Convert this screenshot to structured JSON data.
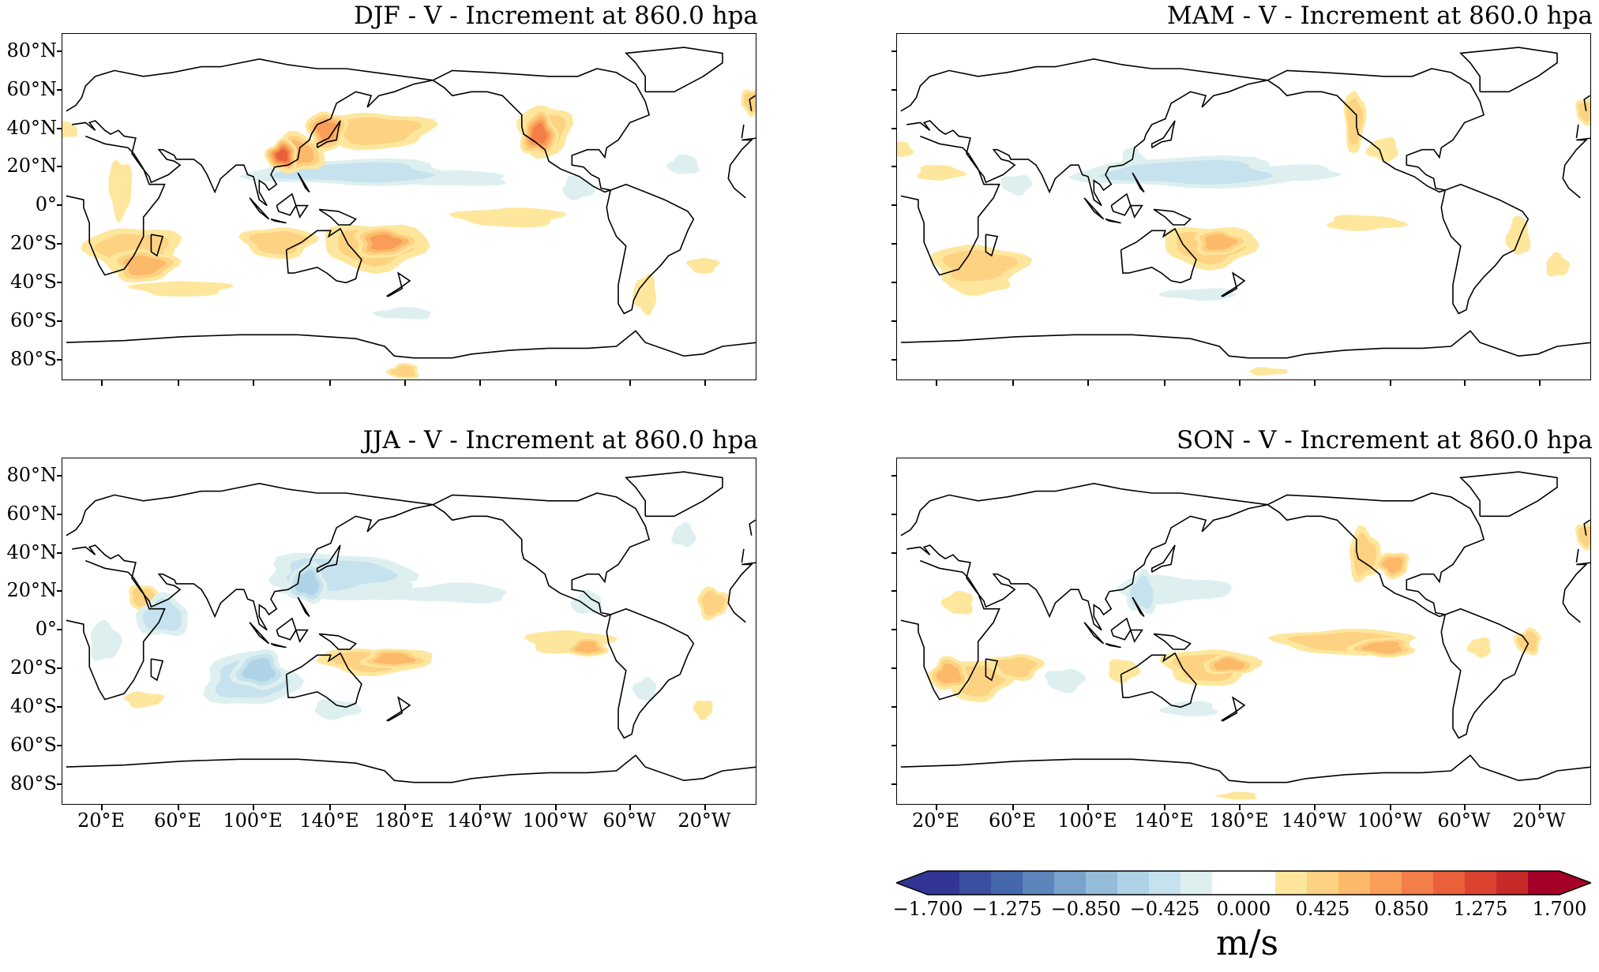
{
  "panels": [
    {
      "id": "djf",
      "title": "DJF - V - Increment at 860.0 hpa"
    },
    {
      "id": "mam",
      "title": "MAM - V - Increment at 860.0 hpa"
    },
    {
      "id": "jja",
      "title": "JJA - V - Increment at 860.0 hpa"
    },
    {
      "id": "son",
      "title": "SON - V - Increment at 860.0 hpa"
    }
  ],
  "lat_labels": [
    "80°N",
    "60°N",
    "40°N",
    "20°N",
    "0°",
    "20°S",
    "40°S",
    "60°S",
    "80°S"
  ],
  "lon_labels": [
    "20°E",
    "60°E",
    "100°E",
    "140°E",
    "180°E",
    "140°W",
    "100°W",
    "60°W",
    "20°W"
  ],
  "colorbar": {
    "unit": "m/s",
    "tick_labels": [
      "−1.700",
      "−1.275",
      "−0.850",
      "−0.425",
      "0.000",
      "0.425",
      "0.850",
      "1.275",
      "1.700"
    ],
    "colors": [
      "#313695",
      "#3b4fa0",
      "#4567ab",
      "#5b85bb",
      "#7aa3cb",
      "#94bdda",
      "#aed3e6",
      "#c6e2ee",
      "#ddf0ef",
      "#ffffff",
      "#ffffff",
      "#fee79d",
      "#fdd283",
      "#fcb96a",
      "#f99d58",
      "#f47e48",
      "#e9603b",
      "#db4230",
      "#c62a28",
      "#a50026"
    ],
    "extend": "both"
  }
}
